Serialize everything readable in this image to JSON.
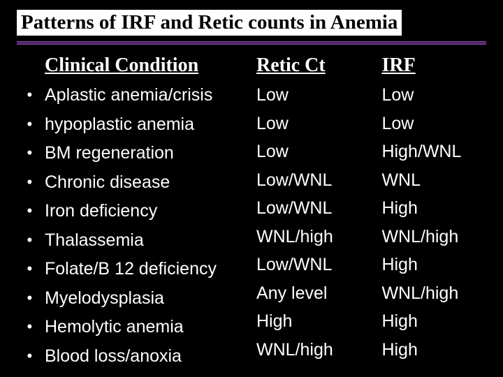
{
  "title": "Patterns of IRF and Retic counts in Anemia",
  "headers": {
    "condition": "Clinical Condition",
    "retic": "Retic Ct",
    "irf": "IRF"
  },
  "rows": [
    {
      "condition": "Aplastic anemia/crisis",
      "retic": "Low",
      "irf": "Low"
    },
    {
      "condition": "hypoplastic anemia",
      "retic": "Low",
      "irf": "Low"
    },
    {
      "condition": "BM regeneration",
      "retic": "Low",
      "irf": "High/WNL"
    },
    {
      "condition": "Chronic disease",
      "retic": "Low/WNL",
      "irf": "WNL"
    },
    {
      "condition": "Iron deficiency",
      "retic": "Low/WNL",
      "irf": "High"
    },
    {
      "condition": "Thalassemia",
      "retic": "WNL/high",
      "irf": "WNL/high"
    },
    {
      "condition": "Folate/B 12 deficiency",
      "retic": "Low/WNL",
      "irf": "High"
    },
    {
      "condition": "Myelodysplasia",
      "retic": "Any level",
      "irf": "WNL/high"
    },
    {
      "condition": "Hemolytic anemia",
      "retic": "High",
      "irf": "High"
    },
    {
      "condition": "Blood loss/anoxia",
      "retic": "WNL/high",
      "irf": "High"
    }
  ],
  "styling": {
    "background_color": "#000000",
    "text_color": "#ffffff",
    "title_bg": "#ffffff",
    "title_color": "#000000",
    "divider_color": "#7b3fa0",
    "title_fontsize": 29,
    "header_fontsize": 28,
    "body_fontsize": 25,
    "title_font": "Times New Roman",
    "header_font": "Times New Roman",
    "body_font": "Arial"
  }
}
